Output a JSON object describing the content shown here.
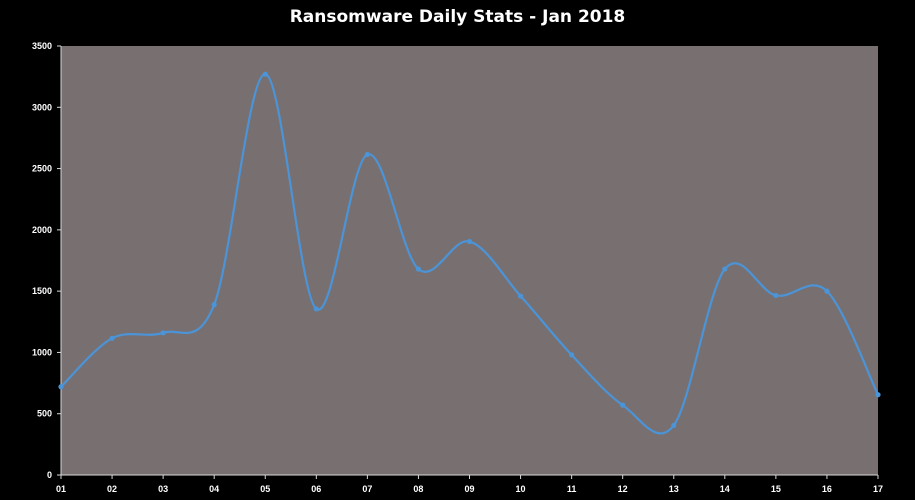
{
  "chart_data": {
    "type": "line",
    "title": "Ransomware Daily Stats - Jan 2018",
    "xlabel": "",
    "ylabel": "",
    "categories": [
      "01",
      "02",
      "03",
      "04",
      "05",
      "06",
      "07",
      "08",
      "09",
      "10",
      "11",
      "12",
      "13",
      "14",
      "15",
      "16",
      "17"
    ],
    "series": [
      {
        "values": [
          720,
          1115,
          1160,
          1390,
          3270,
          1355,
          2615,
          1680,
          1905,
          1460,
          980,
          570,
          405,
          1680,
          1465,
          1500,
          655
        ]
      }
    ],
    "ylim": [
      0,
      3500
    ],
    "yticks": [
      0,
      500,
      1000,
      1500,
      2000,
      2500,
      3000,
      3500
    ],
    "grid": false,
    "legend": "none",
    "smooth": true
  },
  "colors": {
    "background": "#000000",
    "plot_area": "#786f70",
    "line": "#4b94d8",
    "text": "#ffffff"
  }
}
